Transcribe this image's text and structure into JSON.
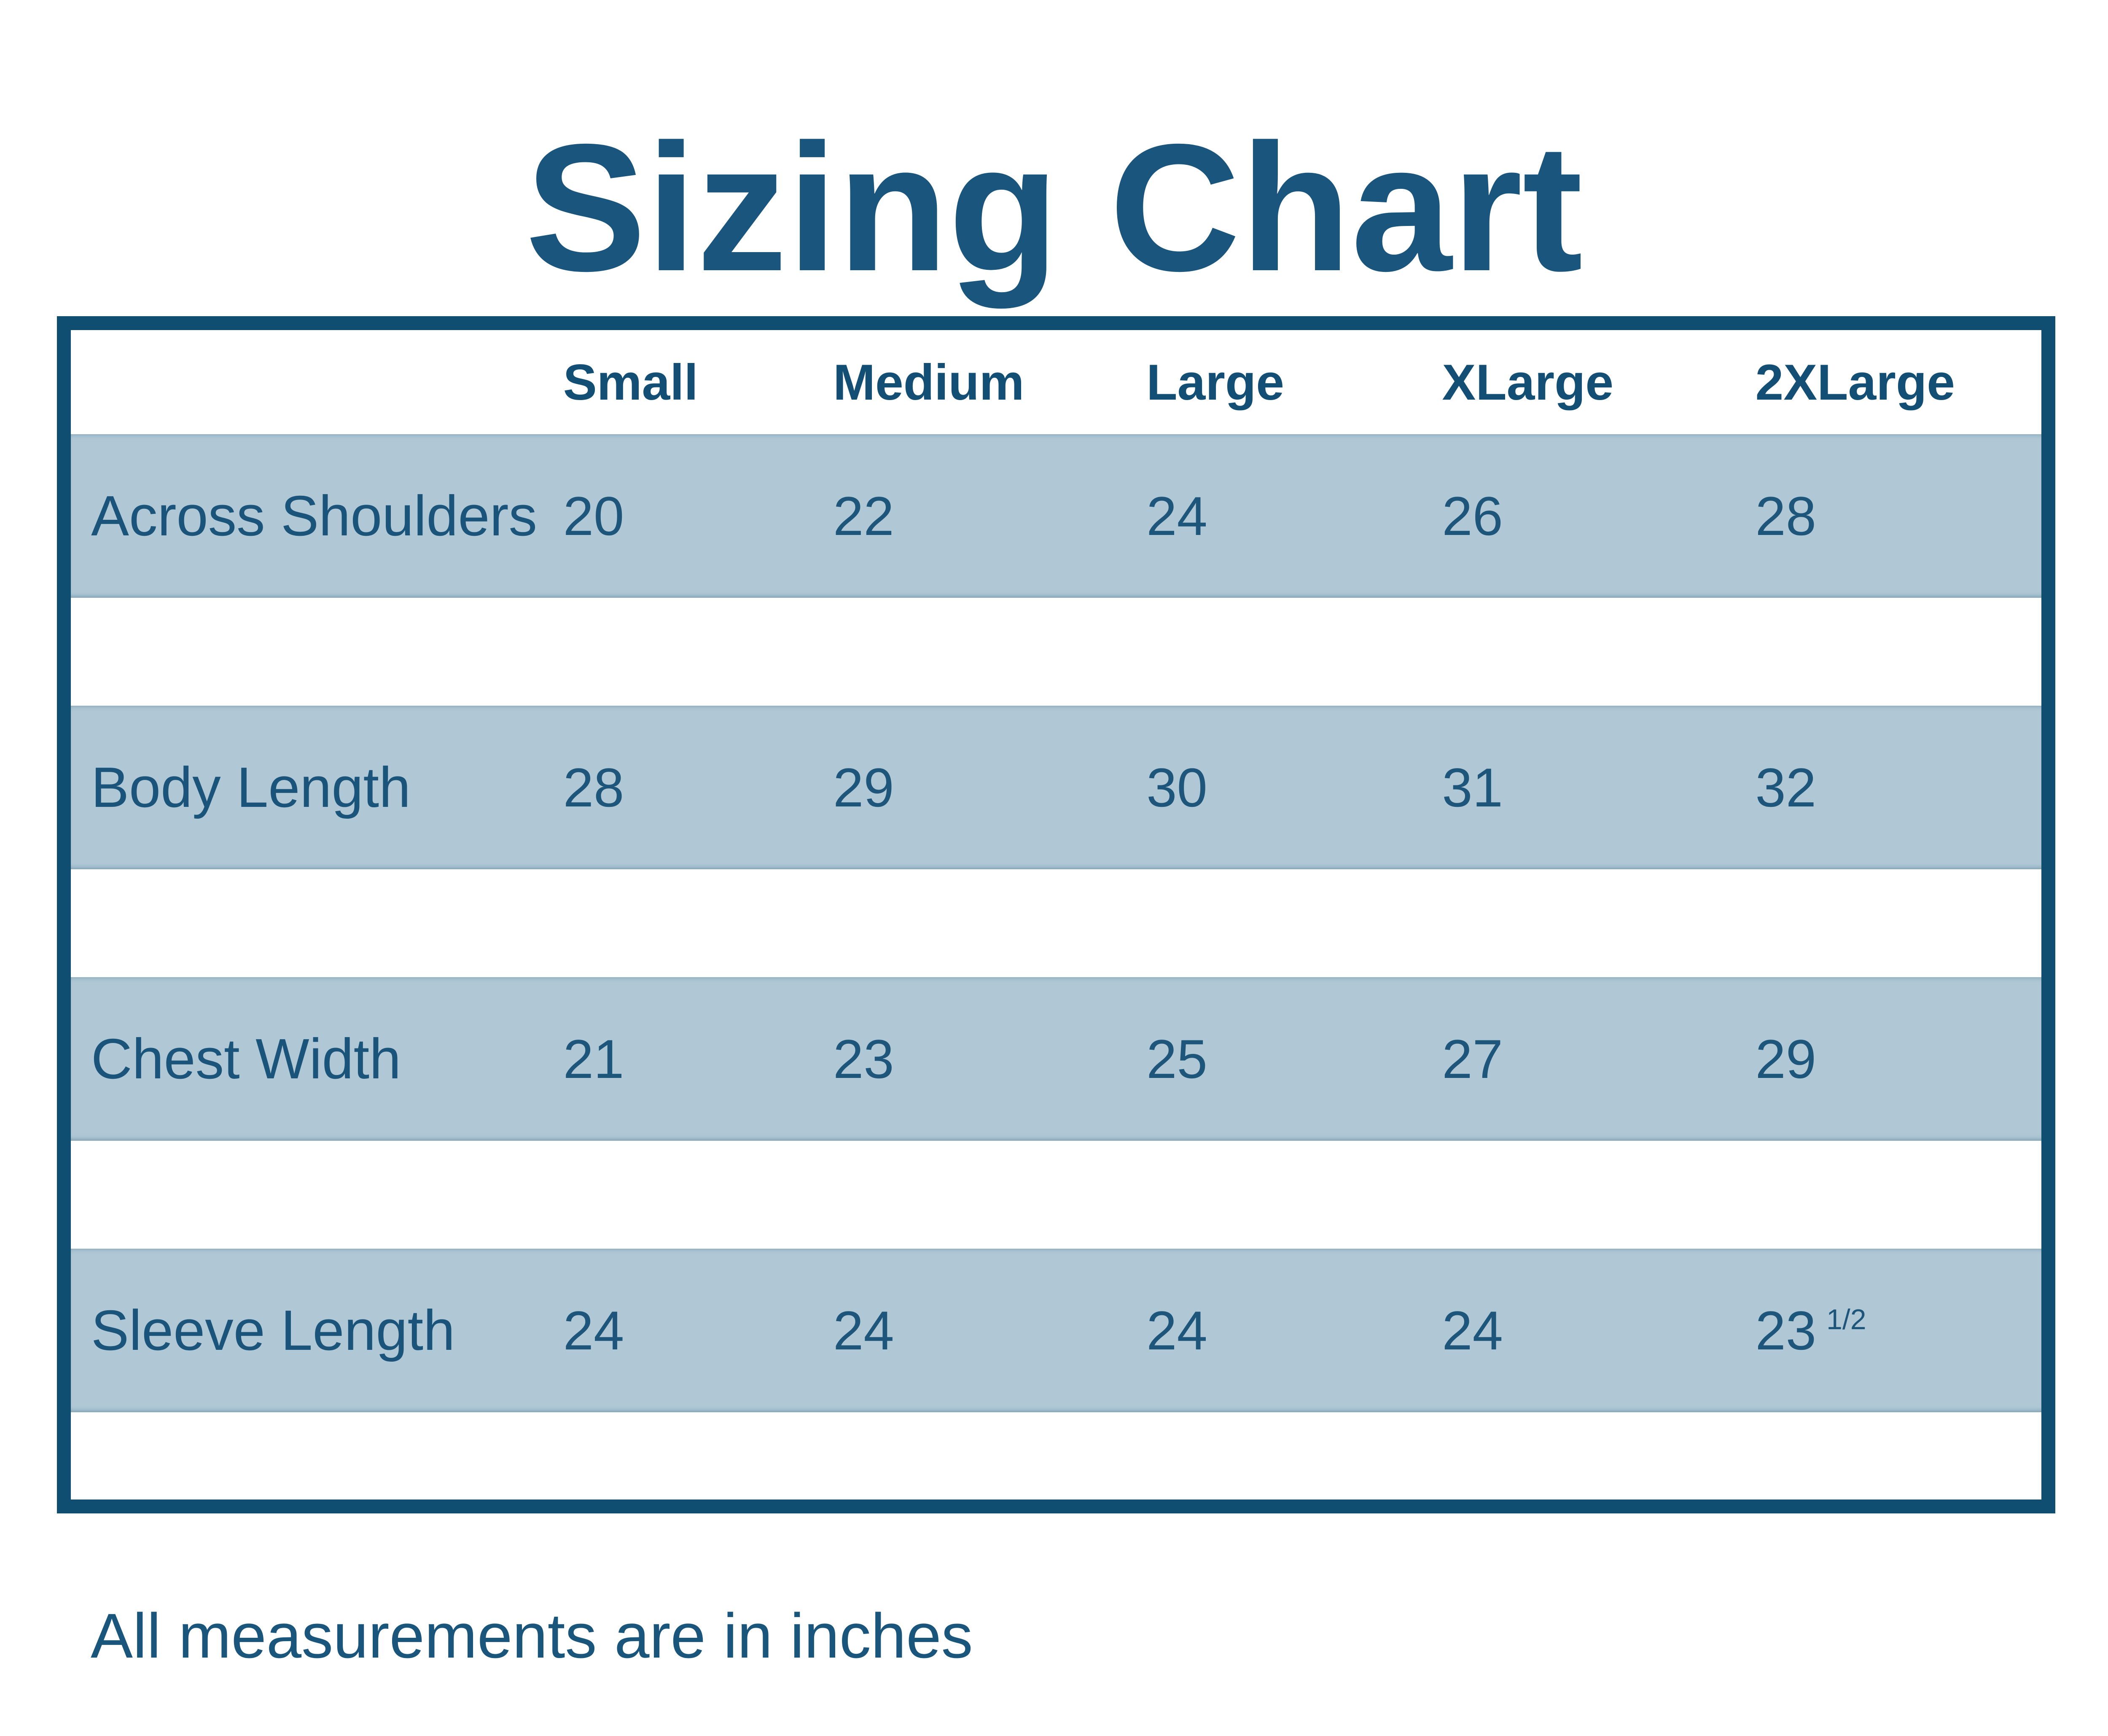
{
  "title": "Sizing Chart",
  "table": {
    "columns": [
      "Small",
      "Medium",
      "Large",
      "XLarge",
      "2XLarge"
    ],
    "rows": [
      {
        "label": "Across Shoulders",
        "values": [
          "20",
          "22",
          "24",
          "26",
          "28"
        ]
      },
      {
        "label": "Body Length",
        "values": [
          "28",
          "29",
          "30",
          "31",
          "32"
        ]
      },
      {
        "label": "Chest Width",
        "values": [
          "21",
          "23",
          "25",
          "27",
          "29"
        ]
      },
      {
        "label": "Sleeve Length",
        "values": [
          "24",
          "24",
          "24",
          "24",
          "23"
        ],
        "frac": "1/2"
      }
    ]
  },
  "footer": "All measurements are in inches",
  "colors": {
    "border_navy": "#0f4e70",
    "title_text": "#19557d",
    "header_text": "#134e74",
    "body_text": "#1d567a",
    "row_background": "#b0c8d6",
    "page_background": "#ffffff"
  },
  "chart_data": {
    "type": "table",
    "title": "Sizing Chart",
    "columns": [
      "Small",
      "Medium",
      "Large",
      "XLarge",
      "2XLarge"
    ],
    "row_labels": [
      "Across Shoulders",
      "Body Length",
      "Chest Width",
      "Sleeve Length"
    ],
    "values": [
      [
        20,
        22,
        24,
        26,
        28
      ],
      [
        28,
        29,
        30,
        31,
        32
      ],
      [
        21,
        23,
        25,
        27,
        29
      ],
      [
        24,
        24,
        24,
        24,
        23.5
      ]
    ],
    "units": "inches",
    "note": "All measurements are in inches"
  }
}
